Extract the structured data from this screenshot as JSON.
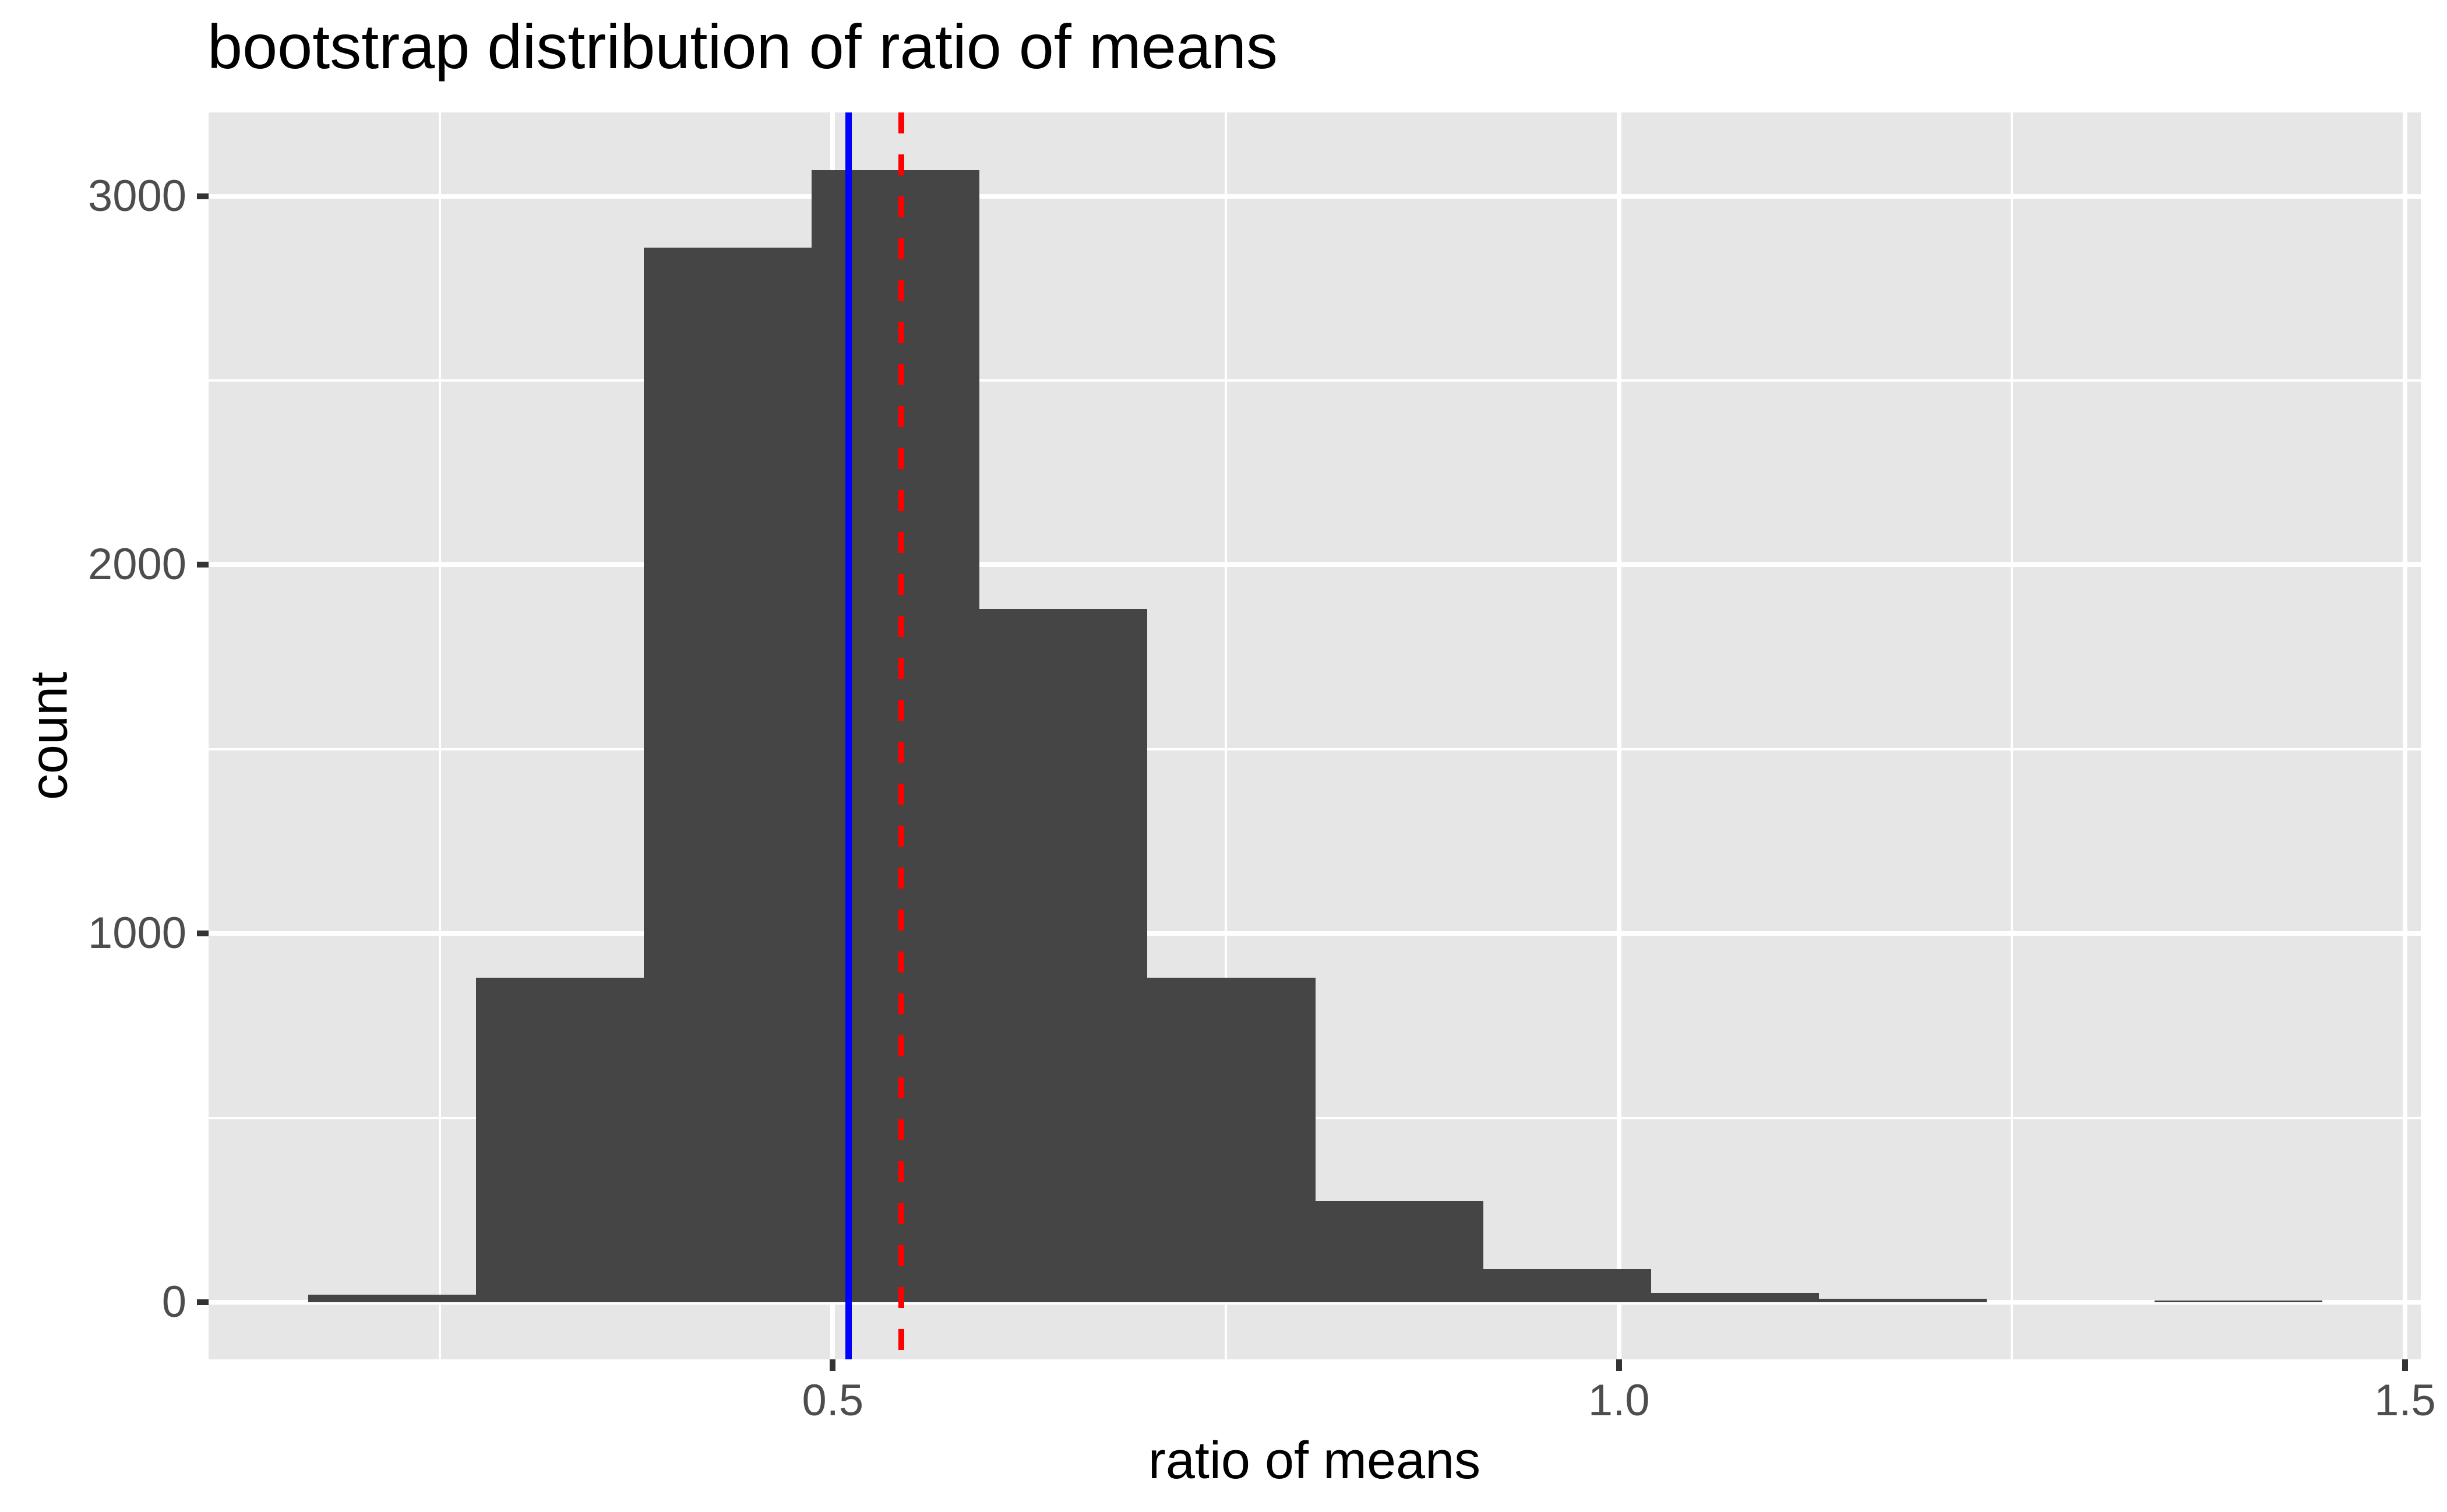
{
  "chart": {
    "title": "bootstrap distribution of ratio of means",
    "x_axis": {
      "title": "ratio of means",
      "tick_labels": [
        "0.5",
        "1.0",
        "1.5"
      ]
    },
    "y_axis": {
      "title": "count",
      "tick_labels": [
        "0",
        "1000",
        "2000",
        "3000"
      ]
    }
  },
  "chart_data": {
    "type": "bar",
    "subtype": "histogram",
    "title": "bootstrap distribution of ratio of means",
    "xlabel": "ratio of means",
    "ylabel": "count",
    "bin_edges": [
      0.1664,
      0.2731,
      0.3799,
      0.4866,
      0.5934,
      0.7001,
      0.8069,
      0.9136,
      1.0204,
      1.1271,
      1.2339,
      1.3406,
      1.4474
    ],
    "counts": [
      20,
      880,
      2860,
      3070,
      1880,
      880,
      275,
      90,
      25,
      10,
      0,
      4
    ],
    "xlim": [
      0.103,
      1.51
    ],
    "ylim": [
      -155,
      3227
    ],
    "x_major_ticks": [
      0.5,
      1.0,
      1.5
    ],
    "x_major_tick_labels": [
      "0.5",
      "1.0",
      "1.5"
    ],
    "x_minor_ticks": [
      0.25,
      0.75,
      1.25
    ],
    "y_major_ticks": [
      0,
      1000,
      2000,
      3000
    ],
    "y_major_tick_labels": [
      "0",
      "1000",
      "2000",
      "3000"
    ],
    "y_minor_ticks": [
      500,
      1500,
      2500
    ],
    "grid": true,
    "legend": false,
    "vlines": [
      {
        "name": "observed-ratio-line",
        "x": 0.51,
        "color": "#0000FF",
        "style": "solid",
        "width": 11
      },
      {
        "name": "bootstrap-mean-line",
        "x": 0.5435,
        "color": "#FF0000",
        "style": "dashed",
        "width": 10,
        "dash": 36,
        "gap": 36
      }
    ],
    "colors": {
      "bar_fill": "#454545",
      "panel_background": "#E6E6E6",
      "gridline": "#FFFFFF",
      "tick_label": "#4D4D4D",
      "tick_mark": "#333333",
      "title": "#000000",
      "axis_title": "#000000"
    }
  }
}
